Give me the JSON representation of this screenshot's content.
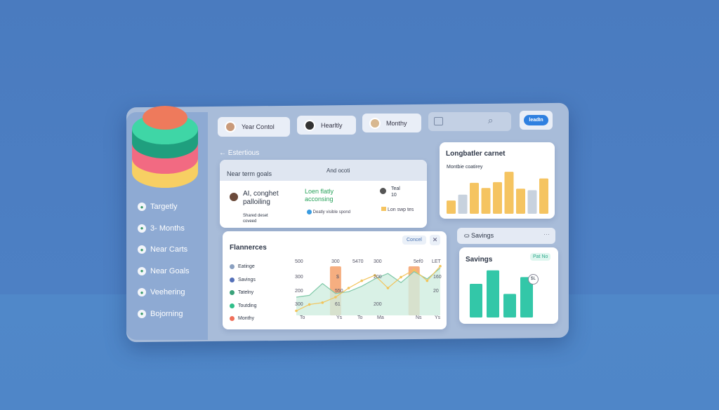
{
  "sidebar": {
    "items": [
      {
        "label": "Targetly",
        "icon": "target-icon"
      },
      {
        "label": "3- Months",
        "icon": "avatar-icon"
      },
      {
        "label": "Near Carts",
        "icon": "avatar-icon"
      },
      {
        "label": "Near Goals",
        "icon": "goal-icon"
      },
      {
        "label": "Veehering",
        "icon": "avatar-icon"
      },
      {
        "label": "Bojorning",
        "icon": "globe-icon"
      }
    ]
  },
  "topbar": {
    "tabs": [
      {
        "label": "Year Contol"
      },
      {
        "label": "Hearltly"
      },
      {
        "label": "Monthy"
      }
    ],
    "button": "leadIn"
  },
  "back": {
    "label": "Estertious"
  },
  "goals": {
    "header_left": "Near term goals",
    "header_mid": "And ocoti",
    "item_title": "AI, conghet palloiling",
    "item_sub": "Shared deset coveed",
    "green_text": "Loen flatly acconsing",
    "status": "Deatly visible spond",
    "right_title": "Teal",
    "right_sub": "10",
    "right_status": "Lon swp tes"
  },
  "long_card": {
    "title": "Longbatler carnet",
    "subtitle": "Montbie coatirey"
  },
  "flan": {
    "title": "Flannerces",
    "cancel": "Concel",
    "legend": [
      {
        "label": "Eatinge",
        "color": "#8aa0c0"
      },
      {
        "label": "Savings",
        "color": "#5470b8"
      },
      {
        "label": "Tatelny",
        "color": "#3aa27a"
      },
      {
        "label": "Toutding",
        "color": "#2fbf8a"
      },
      {
        "label": "Monthy",
        "color": "#f0705a"
      }
    ],
    "labels_top": [
      "500",
      "300",
      "5470",
      "300",
      "5ef0",
      "LET"
    ],
    "labels_mid": [
      "300",
      "$",
      "200",
      "160"
    ],
    "labels_low": [
      "200",
      "550",
      "20"
    ],
    "labels_bot": [
      "300",
      "61",
      "200"
    ],
    "xticks": [
      "To",
      "Ys",
      "To",
      "Ma",
      "Ns",
      "Ys"
    ]
  },
  "savings_bar": {
    "label": "Savings",
    "more": "···"
  },
  "savings_card": {
    "title": "Savings",
    "badge": "Pat No",
    "marker": "$L"
  },
  "colors": {
    "accent": "#2f80e0",
    "yellow": "#f5c461",
    "teal": "#33c7a8",
    "orange": "#f5a06a"
  },
  "chart_data": [
    {
      "type": "bar",
      "title": "Longbatler carnet",
      "values": [
        18,
        26,
        42,
        35,
        43,
        57,
        34,
        32,
        48
      ],
      "colors": [
        "#f5c461",
        "#c8d2de",
        "#f5c461",
        "#f5c461",
        "#f5c461",
        "#f5c461",
        "#f5c461",
        "#c8d2de",
        "#f5c461"
      ]
    },
    {
      "type": "line",
      "title": "Flannerces",
      "series": [
        {
          "values": [
            20,
            22,
            35,
            24,
            26,
            32,
            40,
            46,
            36,
            48,
            40,
            52
          ]
        },
        {
          "values": [
            5,
            12,
            14,
            20,
            30,
            38,
            44,
            30,
            42,
            50,
            38,
            54
          ]
        }
      ],
      "highlights": [
        3,
        9
      ]
    },
    {
      "type": "bar",
      "title": "Savings",
      "values": [
        40,
        56,
        28,
        48
      ]
    }
  ]
}
